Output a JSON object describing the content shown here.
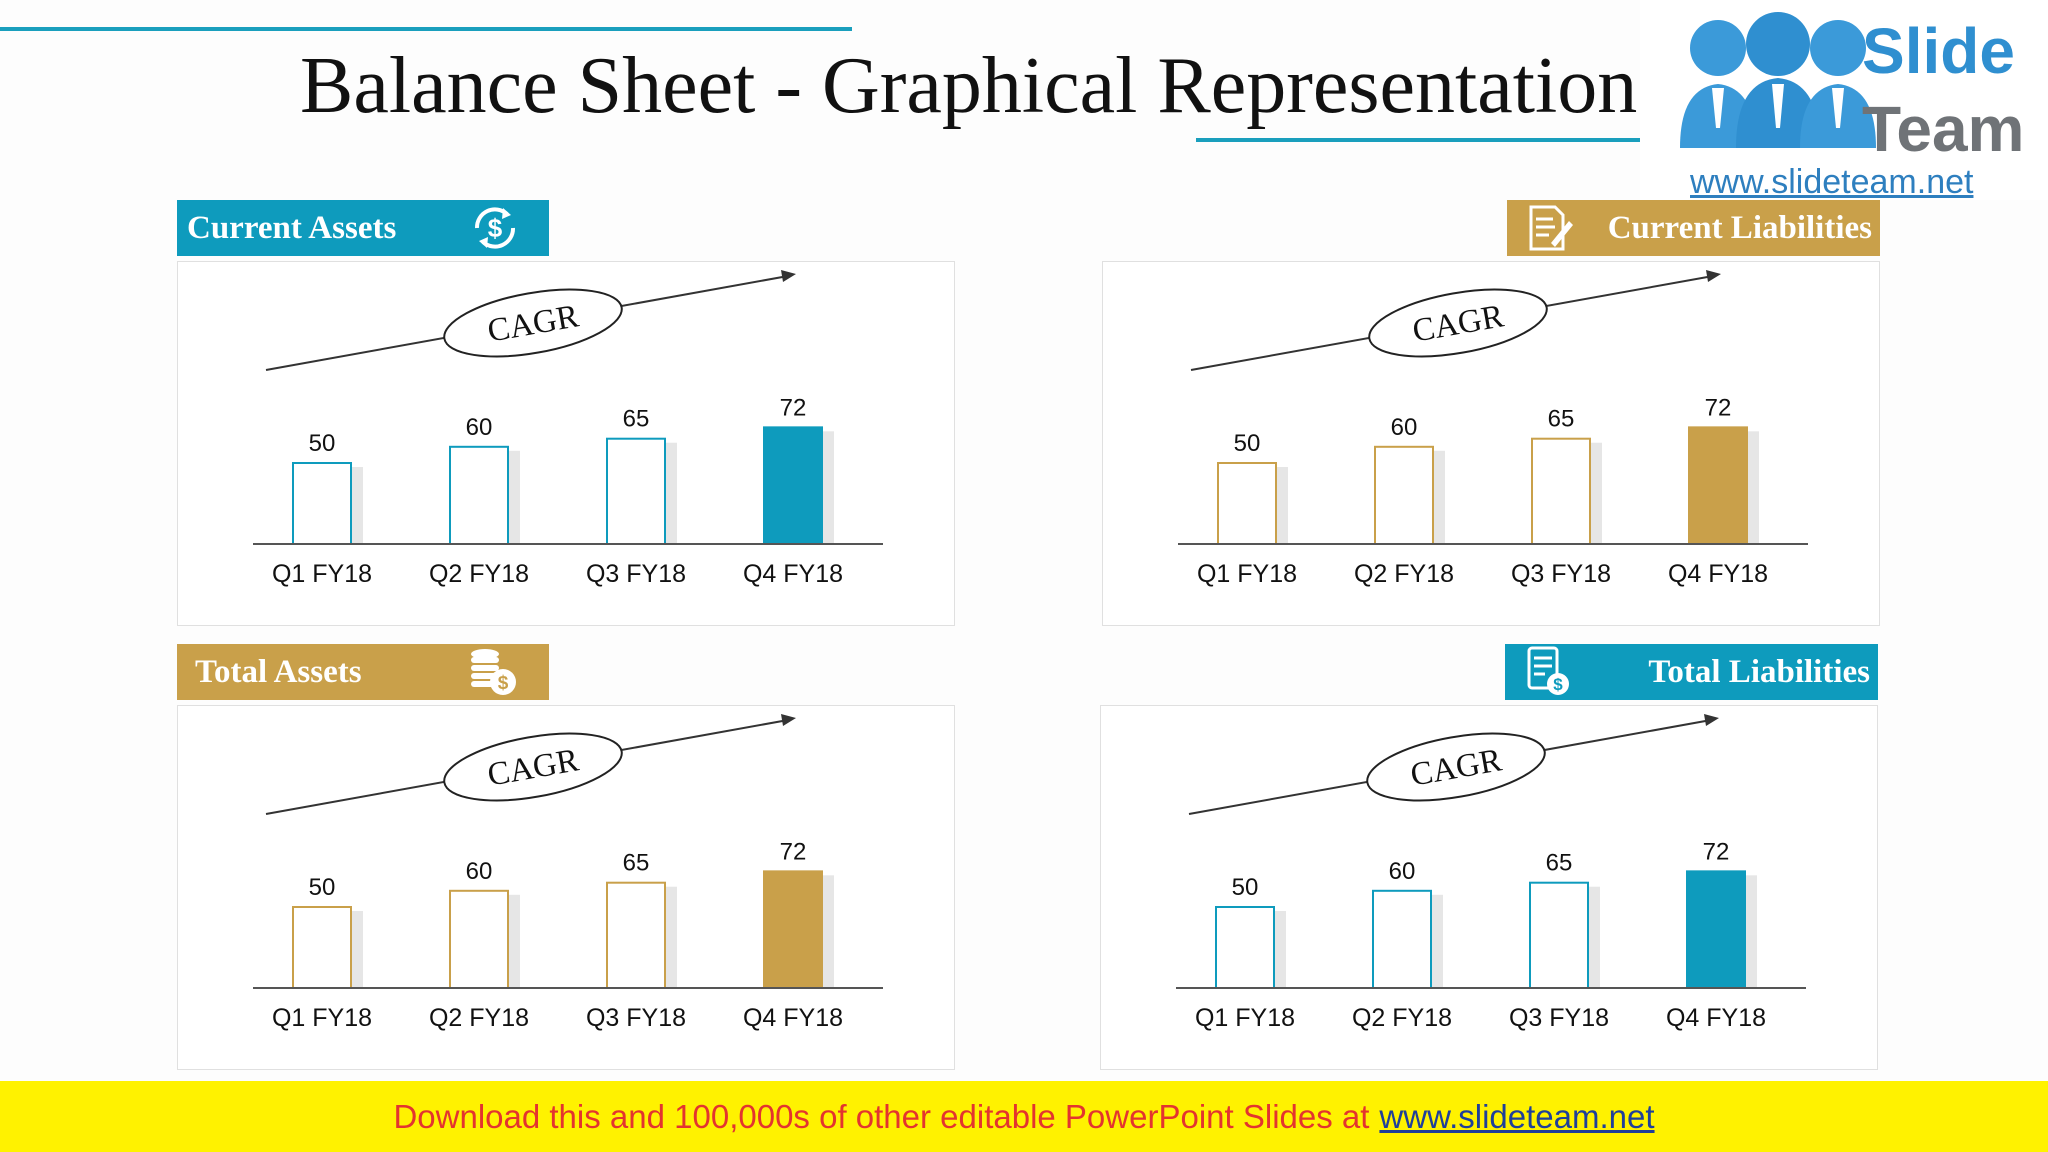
{
  "slide": {
    "title": "Balance Sheet - Graphical Representation",
    "logo": {
      "brand_line1": "Slide",
      "brand_line2": "Team",
      "url": "www.slideteam.net"
    },
    "footer": {
      "text": "Download this and 100,000s of other editable PowerPoint Slides at",
      "link": "www.slideteam.net"
    }
  },
  "colors": {
    "teal": "#0e9bbd",
    "gold": "#c9a04a",
    "title_line": "#1a9fbd"
  },
  "panels": [
    {
      "id": "current-assets",
      "label": "Current Assets",
      "icon": "dollar-cycle-icon",
      "color": "teal",
      "cagr_label": "CAGR"
    },
    {
      "id": "current-liabilities",
      "label": "Current Liabilities",
      "icon": "document-pen-icon",
      "color": "gold",
      "cagr_label": "CAGR"
    },
    {
      "id": "total-assets",
      "label": "Total Assets",
      "icon": "coins-stack-icon",
      "color": "gold",
      "cagr_label": "CAGR"
    },
    {
      "id": "total-liabilities",
      "label": "Total Liabilities",
      "icon": "bill-dollar-icon",
      "color": "teal",
      "cagr_label": "CAGR"
    }
  ],
  "chart_data": [
    {
      "type": "bar",
      "title": "Current Assets",
      "categories": [
        "Q1 FY18",
        "Q2 FY18",
        "Q3 FY18",
        "Q4 FY18"
      ],
      "values": [
        50,
        60,
        65,
        72
      ],
      "ylim": [
        0,
        100
      ],
      "grid": false,
      "highlight_index": 3
    },
    {
      "type": "bar",
      "title": "Current Liabilities",
      "categories": [
        "Q1 FY18",
        "Q2 FY18",
        "Q3 FY18",
        "Q4 FY18"
      ],
      "values": [
        50,
        60,
        65,
        72
      ],
      "ylim": [
        0,
        100
      ],
      "grid": false,
      "highlight_index": 3
    },
    {
      "type": "bar",
      "title": "Total Assets",
      "categories": [
        "Q1 FY18",
        "Q2 FY18",
        "Q3 FY18",
        "Q4 FY18"
      ],
      "values": [
        50,
        60,
        65,
        72
      ],
      "ylim": [
        0,
        100
      ],
      "grid": false,
      "highlight_index": 3
    },
    {
      "type": "bar",
      "title": "Total Liabilities",
      "categories": [
        "Q1 FY18",
        "Q2 FY18",
        "Q3 FY18",
        "Q4 FY18"
      ],
      "values": [
        50,
        60,
        65,
        72
      ],
      "ylim": [
        0,
        100
      ],
      "grid": false,
      "highlight_index": 3
    }
  ]
}
